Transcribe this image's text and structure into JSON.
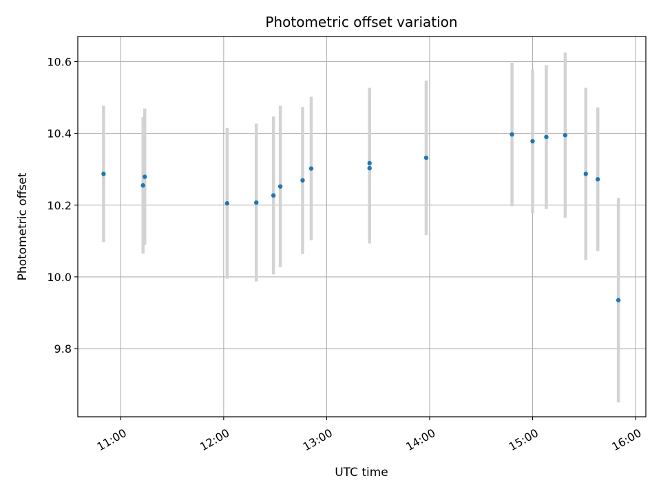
{
  "chart_data": {
    "type": "scatter",
    "title": "Photometric offset variation",
    "xlabel": "UTC time",
    "ylabel": "Photometric offset",
    "grid": true,
    "x_ticks": [
      "11:00",
      "12:00",
      "13:00",
      "14:00",
      "15:00",
      "16:00"
    ],
    "y_ticks": [
      "9.8",
      "10.0",
      "10.2",
      "10.4",
      "10.6"
    ],
    "xlim": [
      "10:35",
      "16:06"
    ],
    "ylim": [
      9.61,
      10.67
    ],
    "point_color": "#1f77b4",
    "errorbar_color": "#d3d3d3",
    "points": [
      {
        "x": "10:50",
        "y": 10.287,
        "err": 0.19
      },
      {
        "x": "11:13",
        "y": 10.255,
        "err": 0.19
      },
      {
        "x": "11:14",
        "y": 10.279,
        "err": 0.19
      },
      {
        "x": "12:02",
        "y": 10.205,
        "err": 0.21
      },
      {
        "x": "12:19",
        "y": 10.207,
        "err": 0.22
      },
      {
        "x": "12:29",
        "y": 10.227,
        "err": 0.22
      },
      {
        "x": "12:33",
        "y": 10.252,
        "err": 0.225
      },
      {
        "x": "12:46",
        "y": 10.269,
        "err": 0.205
      },
      {
        "x": "12:51",
        "y": 10.302,
        "err": 0.2
      },
      {
        "x": "13:25",
        "y": 10.317,
        "err": 0.21
      },
      {
        "x": "13:25",
        "y": 10.303,
        "err": 0.21
      },
      {
        "x": "13:58",
        "y": 10.332,
        "err": 0.215
      },
      {
        "x": "14:48",
        "y": 10.397,
        "err": 0.2
      },
      {
        "x": "15:00",
        "y": 10.378,
        "err": 0.2
      },
      {
        "x": "15:08",
        "y": 10.39,
        "err": 0.2
      },
      {
        "x": "15:19",
        "y": 10.395,
        "err": 0.23
      },
      {
        "x": "15:31",
        "y": 10.287,
        "err": 0.24
      },
      {
        "x": "15:38",
        "y": 10.272,
        "err": 0.2
      },
      {
        "x": "15:50",
        "y": 9.935,
        "err": 0.285
      }
    ]
  }
}
